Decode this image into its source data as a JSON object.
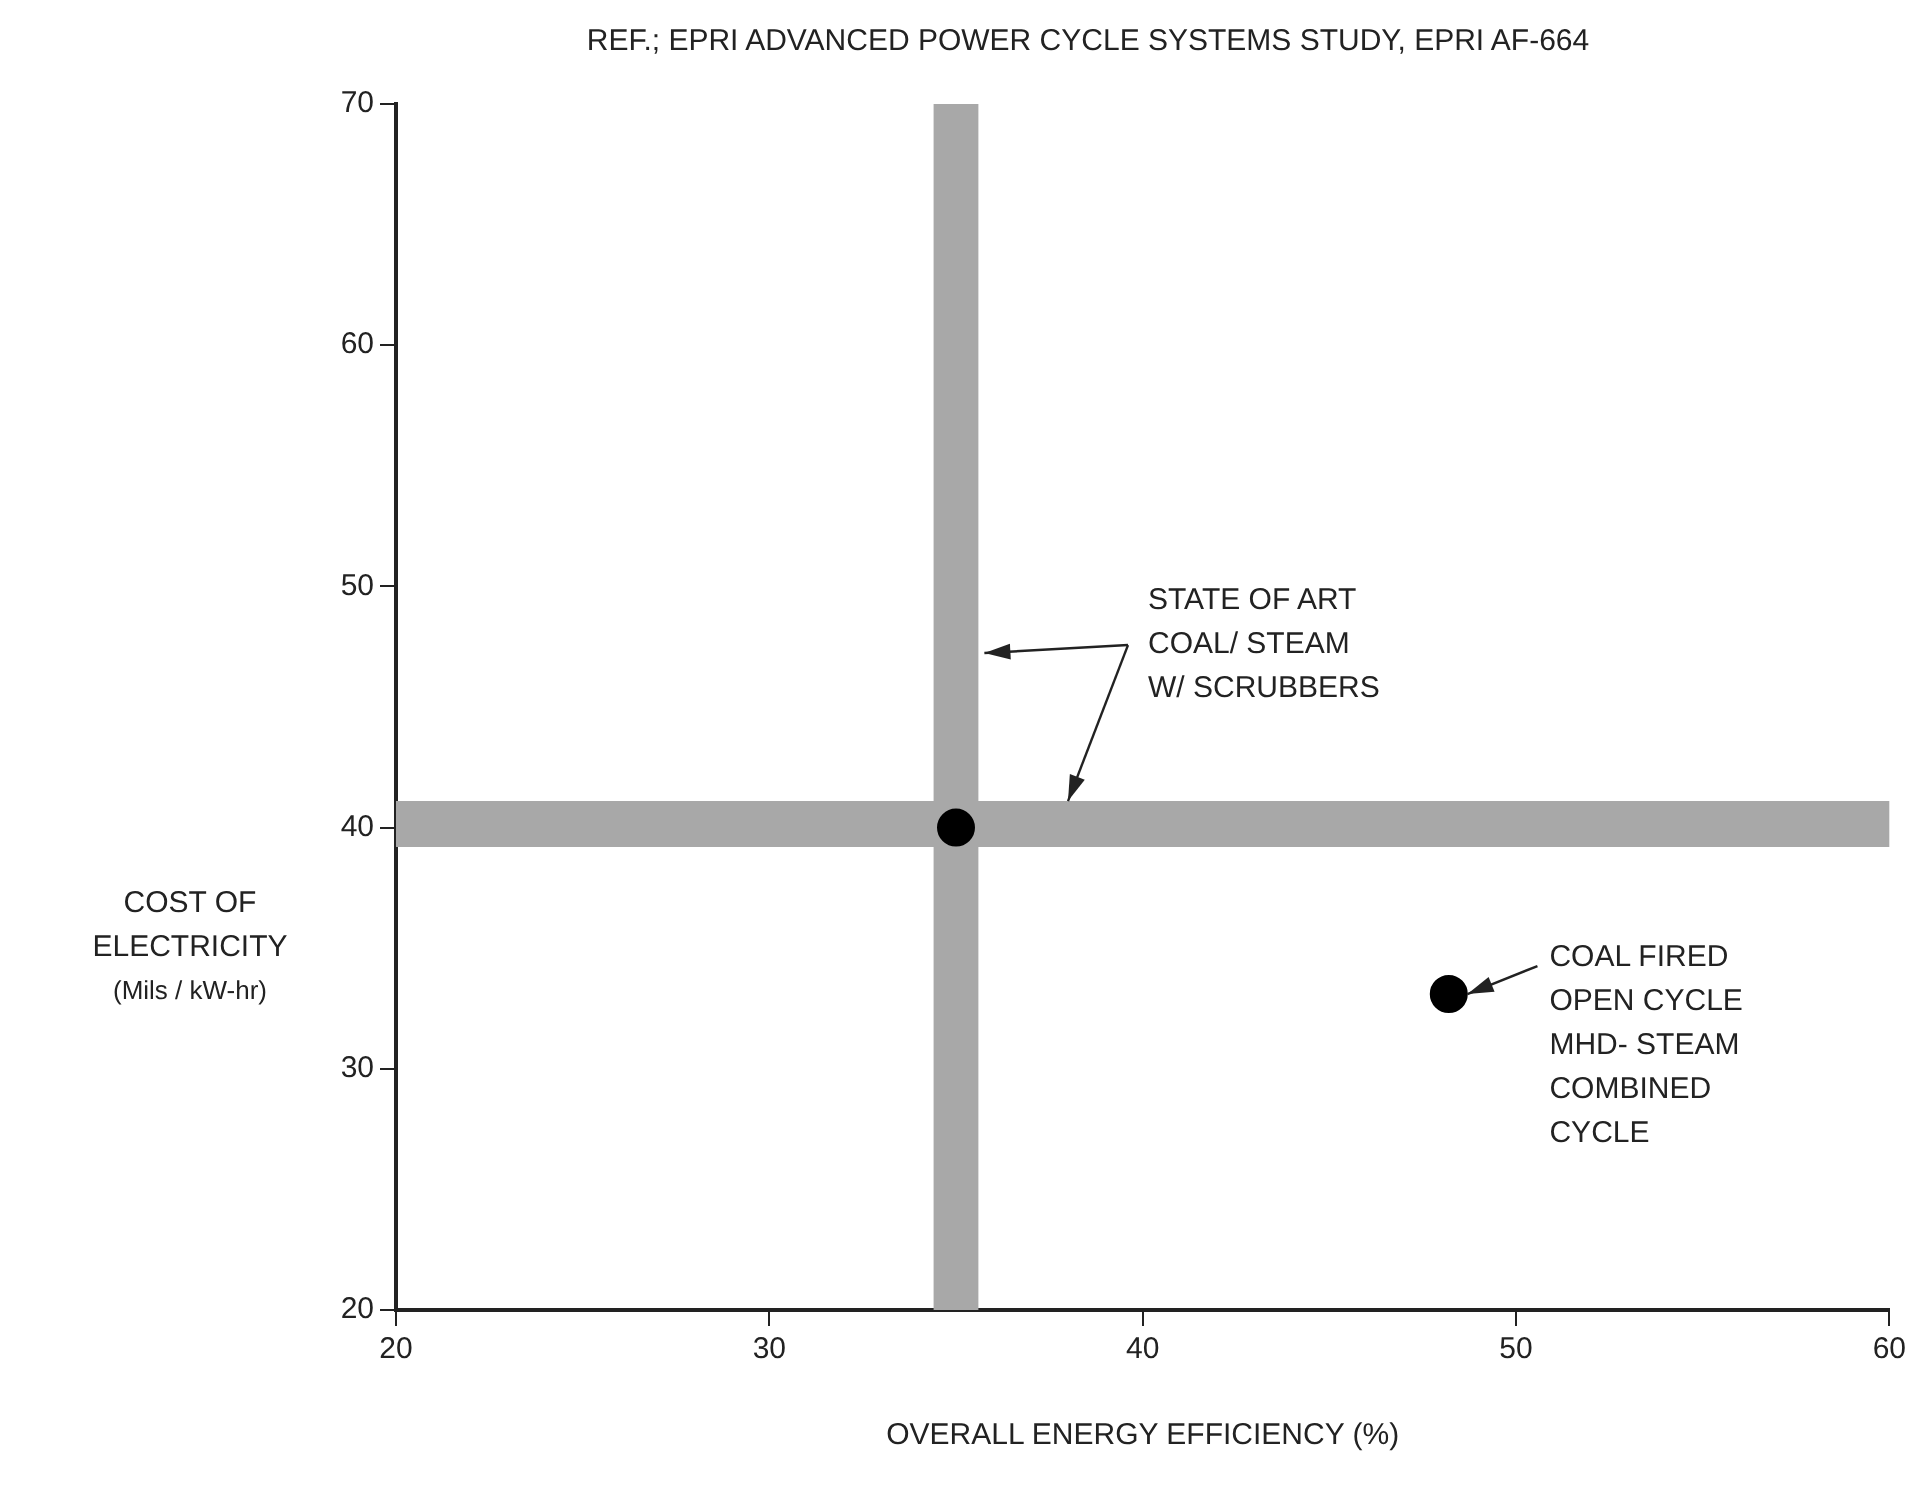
{
  "chart_data": {
    "type": "scatter",
    "title": "REF.; EPRI ADVANCED POWER CYCLE SYSTEMS STUDY, EPRI AF-664",
    "xlabel": "OVERALL ENERGY EFFICIENCY (%)",
    "ylabel": "COST OF\nELECTRICITY\n(Mils / kW-hr)",
    "x": [
      35,
      48.2
    ],
    "values": [
      40,
      33.1
    ],
    "color": "#000000",
    "marker": "circle",
    "xlim": [
      20,
      60
    ],
    "xticks": [
      20,
      30,
      40,
      50,
      60
    ],
    "ylim": [
      20,
      70
    ],
    "yticks": [
      20,
      30,
      40,
      50,
      60,
      70
    ],
    "grid": false,
    "legend": false,
    "bands": [
      {
        "axis": "x",
        "from": 34.4,
        "to": 35.6,
        "color": "#a8a8a8"
      },
      {
        "axis": "y",
        "from": 39.2,
        "to": 41.1,
        "color": "#a8a8a8"
      }
    ],
    "annotations": [
      {
        "text": "STATE OF ART\nCOAL/ STEAM\nW/ SCRUBBERS",
        "x": 38,
        "y": 41.1
      },
      {
        "text": "COAL FIRED\nOPEN CYCLE\nMHD- STEAM\nCOMBINED\nCYCLE",
        "x": 48.7,
        "y": 33.1
      }
    ]
  }
}
